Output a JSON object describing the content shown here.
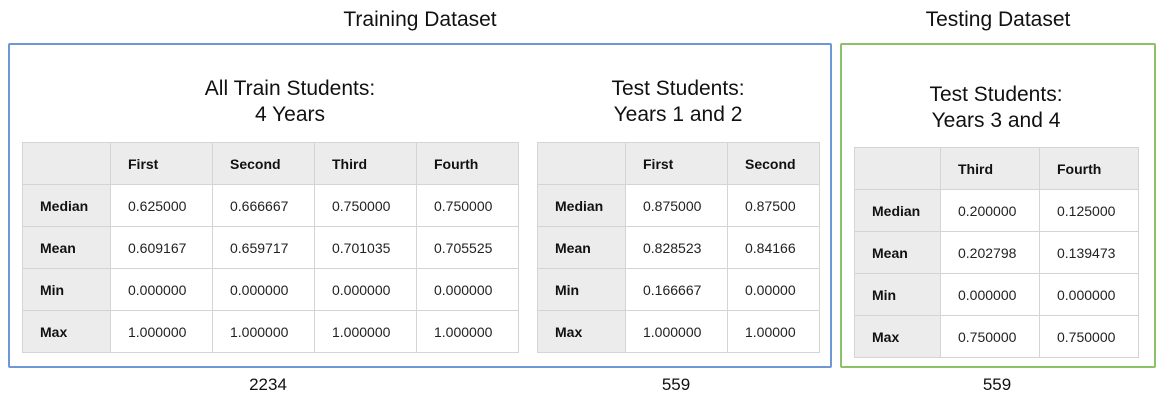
{
  "titles": {
    "training": "Training Dataset",
    "testing": "Testing Dataset"
  },
  "tables": [
    {
      "heading_line1": "All Train Students:",
      "heading_line2": "4 Years",
      "columns": [
        "First",
        "Second",
        "Third",
        "Fourth"
      ],
      "rows": [
        {
          "label": "Median",
          "values": [
            "0.625000",
            "0.666667",
            "0.750000",
            "0.750000"
          ]
        },
        {
          "label": "Mean",
          "values": [
            "0.609167",
            "0.659717",
            "0.701035",
            "0.705525"
          ]
        },
        {
          "label": "Min",
          "values": [
            "0.000000",
            "0.000000",
            "0.000000",
            "0.000000"
          ]
        },
        {
          "label": "Max",
          "values": [
            "1.000000",
            "1.000000",
            "1.000000",
            "1.000000"
          ]
        }
      ],
      "count": "2234"
    },
    {
      "heading_line1": "Test Students:",
      "heading_line2": "Years 1 and 2",
      "columns": [
        "First",
        "Second"
      ],
      "rows": [
        {
          "label": "Median",
          "values": [
            "0.875000",
            "0.87500"
          ]
        },
        {
          "label": "Mean",
          "values": [
            "0.828523",
            "0.84166"
          ]
        },
        {
          "label": "Min",
          "values": [
            "0.166667",
            "0.00000"
          ]
        },
        {
          "label": "Max",
          "values": [
            "1.000000",
            "1.00000"
          ]
        }
      ],
      "count": "559"
    },
    {
      "heading_line1": "Test Students:",
      "heading_line2": "Years 3 and 4",
      "columns": [
        "Third",
        "Fourth"
      ],
      "rows": [
        {
          "label": "Median",
          "values": [
            "0.200000",
            "0.125000"
          ]
        },
        {
          "label": "Mean",
          "values": [
            "0.202798",
            "0.139473"
          ]
        },
        {
          "label": "Min",
          "values": [
            "0.000000",
            "0.000000"
          ]
        },
        {
          "label": "Max",
          "values": [
            "0.750000",
            "0.750000"
          ]
        }
      ],
      "count": "559"
    }
  ],
  "colors": {
    "training_border": "#6f97d6",
    "testing_border": "#8cc16a",
    "header_bg": "#ececec"
  }
}
